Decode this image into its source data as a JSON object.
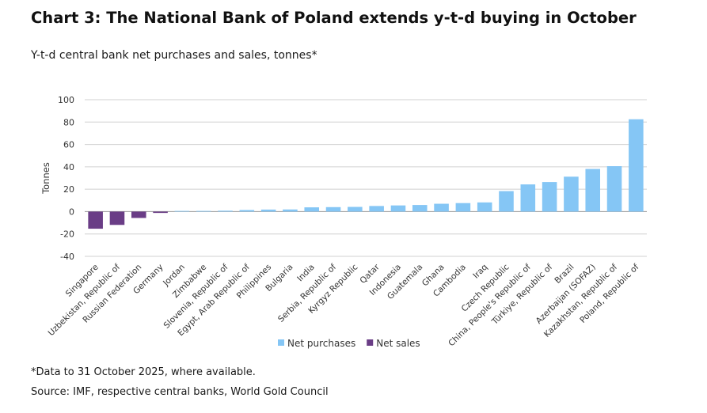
{
  "header": {
    "title": "Chart 3: The National Bank of Poland extends y-t-d buying in October",
    "subtitle": "Y-t-d central bank net purchases and sales, tonnes*"
  },
  "footer": {
    "footnote": "*Data to 31 October 2025, where available.",
    "source": "Source: IMF, respective central banks, World Gold Council"
  },
  "colors": {
    "purchase": "#85c6f5",
    "sale": "#6a3d86",
    "grid": "#d0d0d0",
    "axis": "#9a9a9a"
  },
  "chart_data": {
    "type": "bar",
    "title": "Y-t-d central bank net purchases and sales, tonnes*",
    "xlabel": "",
    "ylabel": "Tonnes",
    "ylim": [
      -40,
      100
    ],
    "yticks": [
      100,
      80,
      60,
      40,
      20,
      0,
      -20,
      -40
    ],
    "grid": true,
    "legend_position": "bottom",
    "legend": [
      {
        "name": "Net purchases",
        "key": "purchase"
      },
      {
        "name": "Net sales",
        "key": "sale"
      }
    ],
    "categories": [
      "Singapore",
      "Uzbekistan, Republic of",
      "Russian Federation",
      "Germany",
      "Jordan",
      "Zimbabwe",
      "Slovenia, Republic of",
      "Egypt, Arab Republic of",
      "Philippines",
      "Bulgaria",
      "India",
      "Serbia, Republic of",
      "Kyrgyz Republic",
      "Qatar",
      "Indonesia",
      "Guatemala",
      "Ghana",
      "Cambodia",
      "Iraq",
      "Czech Republic",
      "China, People's Republic of",
      "Türkiye, Republic of",
      "Brazil",
      "Azerbaijan (SOFAZ)",
      "Kazakhstan, Republic of",
      "Poland, Republic of"
    ],
    "values": [
      -15.3,
      -11.9,
      -5.7,
      -1.2,
      0.6,
      0.6,
      0.8,
      1.4,
      1.8,
      1.9,
      3.8,
      4.0,
      4.2,
      5.0,
      5.5,
      5.9,
      7.0,
      7.6,
      8.2,
      18.3,
      24.3,
      26.4,
      31.2,
      38.1,
      40.6,
      82.5
    ]
  }
}
